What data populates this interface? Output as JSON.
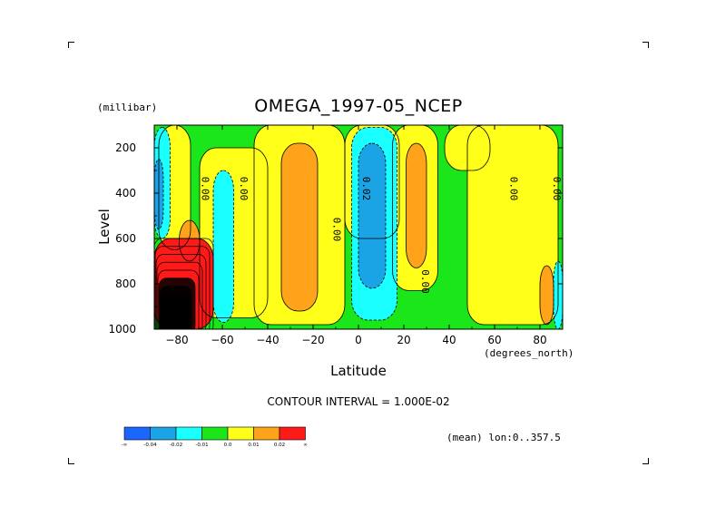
{
  "chart_data": {
    "type": "heatmap",
    "title": "OMEGA_1997-05_NCEP",
    "xlabel": "Latitude",
    "xunits": "(degrees_north)",
    "ylabel": "Level",
    "yunits": "(millibar)",
    "xlim": [
      -90,
      90
    ],
    "ylim": [
      1000,
      100
    ],
    "x_ticks": [
      -80,
      -60,
      -40,
      -20,
      0,
      20,
      40,
      60,
      80
    ],
    "y_ticks": [
      200,
      400,
      600,
      800,
      1000
    ],
    "contour_interval_label": "CONTOUR INTERVAL = 1.000E-02",
    "subtitle": "(mean) lon:0..357.5",
    "contour_labels": [
      {
        "text": "0.00",
        "lat": -69,
        "lev": 380
      },
      {
        "text": "0.00",
        "lat": -52,
        "lev": 380
      },
      {
        "text": "0.00",
        "lat": -11,
        "lev": 560
      },
      {
        "text": "0.02",
        "lat": 2,
        "lev": 380
      },
      {
        "text": "0.00",
        "lat": 28,
        "lev": 790
      },
      {
        "text": "0.00",
        "lat": 67,
        "lev": 380
      },
      {
        "text": "0.00",
        "lat": 86,
        "lev": 380
      }
    ],
    "colorbar": {
      "labels": [
        "-∞",
        "-0.04",
        "-0.02",
        "-0.01",
        "0.0",
        "0.01",
        "0.02",
        "∞"
      ],
      "colors": [
        "#1a66ff",
        "#1aa4e6",
        "#1affff",
        "#1ae61a",
        "#ffff1a",
        "#ffa41a",
        "#ff1a1a"
      ]
    },
    "regions": [
      {
        "level": "neg1",
        "color": "#1ae61a",
        "lat": [
          -90,
          90
        ],
        "lev": [
          100,
          1000
        ]
      },
      {
        "level": "pos0",
        "color": "#ffff1a",
        "lat": [
          -88,
          -74
        ],
        "lev": [
          100,
          650
        ]
      },
      {
        "level": "pos0",
        "color": "#ffff1a",
        "lat": [
          -70,
          -40
        ],
        "lev": [
          200,
          950
        ]
      },
      {
        "level": "pos0",
        "color": "#ffff1a",
        "lat": [
          -46,
          -6
        ],
        "lev": [
          100,
          980
        ]
      },
      {
        "level": "pos0",
        "color": "#ffff1a",
        "lat": [
          -6,
          18
        ],
        "lev": [
          100,
          600
        ]
      },
      {
        "level": "pos0",
        "color": "#ffff1a",
        "lat": [
          15,
          35
        ],
        "lev": [
          100,
          830
        ]
      },
      {
        "level": "pos0",
        "color": "#ffff1a",
        "lat": [
          38,
          58
        ],
        "lev": [
          100,
          300
        ]
      },
      {
        "level": "pos0",
        "color": "#ffff1a",
        "lat": [
          48,
          88
        ],
        "lev": [
          100,
          980
        ]
      },
      {
        "level": "pos1",
        "color": "#ffa41a",
        "lat": [
          -34,
          -18
        ],
        "lev": [
          180,
          920
        ]
      },
      {
        "level": "pos1",
        "color": "#ffa41a",
        "lat": [
          21,
          30
        ],
        "lev": [
          180,
          730
        ]
      },
      {
        "level": "pos1",
        "color": "#ffa41a",
        "lat": [
          -79,
          -70
        ],
        "lev": [
          520,
          700
        ]
      },
      {
        "level": "pos1",
        "color": "#ffa41a",
        "lat": [
          80,
          86
        ],
        "lev": [
          720,
          980
        ]
      },
      {
        "level": "neg2",
        "color": "#1affff",
        "lat": [
          -64,
          -55
        ],
        "lev": [
          300,
          970
        ]
      },
      {
        "level": "neg2",
        "color": "#1affff",
        "lat": [
          -3,
          17
        ],
        "lev": [
          110,
          960
        ]
      },
      {
        "level": "neg2",
        "color": "#1affff",
        "lat": [
          -90,
          -83
        ],
        "lev": [
          110,
          600
        ]
      },
      {
        "level": "neg2",
        "color": "#1affff",
        "lat": [
          86,
          90
        ],
        "lev": [
          700,
          1000
        ]
      },
      {
        "level": "neg3",
        "color": "#1aa4e6",
        "lat": [
          0,
          12
        ],
        "lev": [
          180,
          820
        ]
      },
      {
        "level": "neg3",
        "color": "#1aa4e6",
        "lat": [
          -90,
          -86
        ],
        "lev": [
          250,
          560
        ]
      },
      {
        "level": "pos2",
        "color": "#ff1a1a",
        "lat": [
          -90,
          -64
        ],
        "lev": [
          600,
          1000
        ]
      }
    ]
  }
}
